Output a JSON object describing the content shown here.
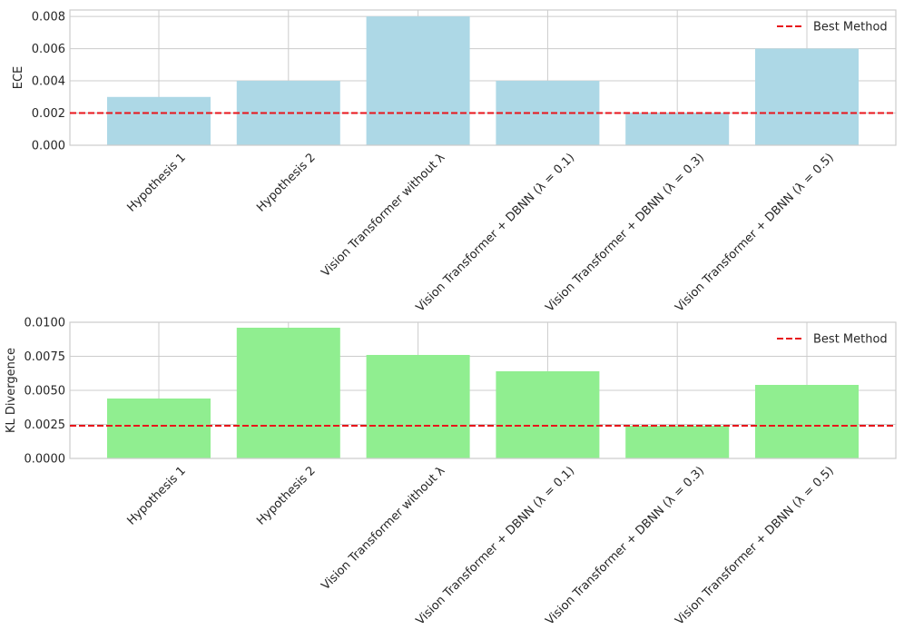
{
  "colors": {
    "ece_bar": "#add8e6",
    "kl_bar": "#90ee90",
    "reference_line": "#e8151b",
    "grid": "#cccccc",
    "axes_frame": "#cccccc",
    "text": "#262626"
  },
  "chart_data": [
    {
      "type": "bar",
      "panel": "top",
      "title": "",
      "xlabel": "",
      "ylabel": "ECE",
      "ylim": [
        0,
        0.0084
      ],
      "yticks": [
        "0.000",
        "0.002",
        "0.004",
        "0.006",
        "0.008"
      ],
      "ytick_values": [
        0,
        0.002,
        0.004,
        0.006,
        0.008
      ],
      "categories": [
        "Hypothesis 1",
        "Hypothesis 2",
        "Vision Transformer without λ",
        "Vision Transformer + DBNN (λ = 0.1)",
        "Vision Transformer + DBNN (λ = 0.3)",
        "Vision Transformer + DBNN (λ = 0.5)"
      ],
      "values": [
        0.003,
        0.004,
        0.008,
        0.004,
        0.002,
        0.006
      ],
      "reference_line": {
        "label": "Best Method",
        "value": 0.002,
        "style": "dashed"
      },
      "legend_position": "top-right",
      "grid": true
    },
    {
      "type": "bar",
      "panel": "bottom",
      "title": "",
      "xlabel": "",
      "ylabel": "KL Divergence",
      "ylim": [
        0,
        0.01
      ],
      "yticks": [
        "0.0000",
        "0.0025",
        "0.0050",
        "0.0075",
        "0.0100"
      ],
      "ytick_values": [
        0,
        0.0025,
        0.005,
        0.0075,
        0.01
      ],
      "categories": [
        "Hypothesis 1",
        "Hypothesis 2",
        "Vision Transformer without λ",
        "Vision Transformer + DBNN (λ = 0.1)",
        "Vision Transformer + DBNN (λ = 0.3)",
        "Vision Transformer + DBNN (λ = 0.5)"
      ],
      "values": [
        0.0044,
        0.0096,
        0.0076,
        0.0064,
        0.0024,
        0.0054
      ],
      "reference_line": {
        "label": "Best Method",
        "value": 0.0024,
        "style": "dashed"
      },
      "legend_position": "top-right",
      "grid": true
    }
  ]
}
